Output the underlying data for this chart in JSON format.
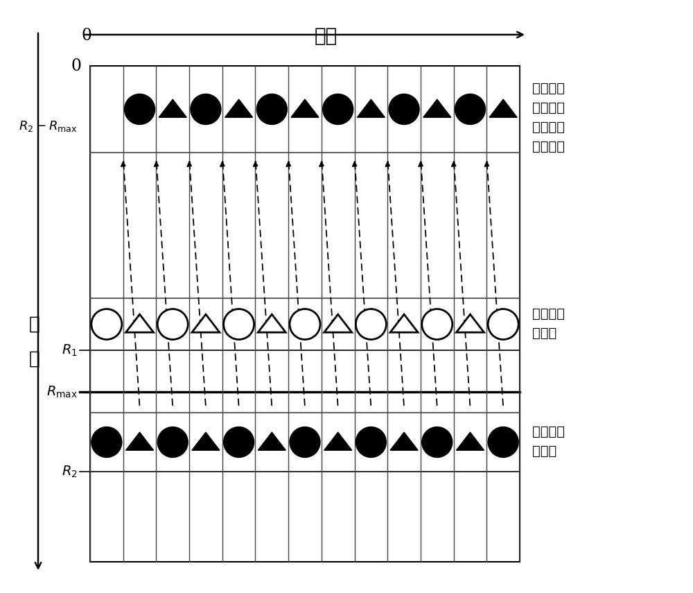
{
  "title_time": "时间",
  "ylabel_line1": "距",
  "ylabel_line2": "离",
  "label_R2_Rmax": "$R_2 - R_{\\mathrm{max}}$",
  "label_R1": "$R_1$",
  "label_Rmax": "$R_{\\mathrm{max}}$",
  "label_R2": "$R_2$",
  "annotation_top_line1": "远距离单",
  "annotation_top_line2": "元被折回",
  "annotation_top_line3": "到近距离",
  "annotation_top_line4": "上的目标",
  "annotation_mid_line1": "近距离单",
  "annotation_mid_line2": "元目标",
  "annotation_bot_line1": "远距离单",
  "annotation_bot_line2": "元目标",
  "n_cols": 13,
  "background_color": "#ffffff"
}
